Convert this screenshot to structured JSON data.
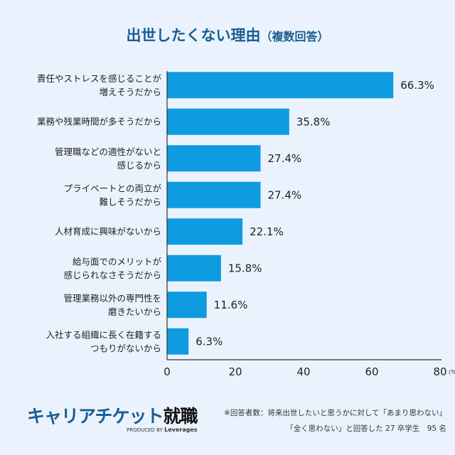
{
  "title": "出世したくない理由",
  "title_suffix": "（複数回答）",
  "chart_data": {
    "type": "bar",
    "orientation": "horizontal",
    "title": "出世したくない理由（複数回答）",
    "categories": [
      [
        "責任やストレスを感じることが",
        "増えそうだから"
      ],
      [
        "業務や残業時間が多そうだから"
      ],
      [
        "管理職などの適性がないと",
        "感じるから"
      ],
      [
        "プライベートとの両立が",
        "難しそうだから"
      ],
      [
        "人材育成に興味がないから"
      ],
      [
        "給与面でのメリットが",
        "感じられなさそうだから"
      ],
      [
        "管理業務以外の専門性を",
        "磨きたいから"
      ],
      [
        "入社する組織に長く在籍する",
        "つもりがないから"
      ]
    ],
    "values": [
      66.3,
      35.8,
      27.4,
      27.4,
      22.1,
      15.8,
      11.6,
      6.3
    ],
    "value_labels": [
      "66.3%",
      "35.8%",
      "27.4%",
      "27.4%",
      "22.1%",
      "15.8%",
      "11.6%",
      "6.3%"
    ],
    "xlim": [
      0,
      80
    ],
    "xticks": [
      "0",
      "20",
      "40",
      "60",
      "80"
    ],
    "xunit": "(%",
    "grid": false,
    "bar_color": "#0f9be0"
  },
  "logo": {
    "main": "キャリアチケット",
    "kanji": "就職",
    "produced_by": "PRODUCED BY",
    "brand": "Leverages"
  },
  "note": [
    "※回答者数：将来出世したいと思うかに対して「あまり思わない」",
    "「全く思わない」と回答した 27 卒学生　95 名"
  ]
}
